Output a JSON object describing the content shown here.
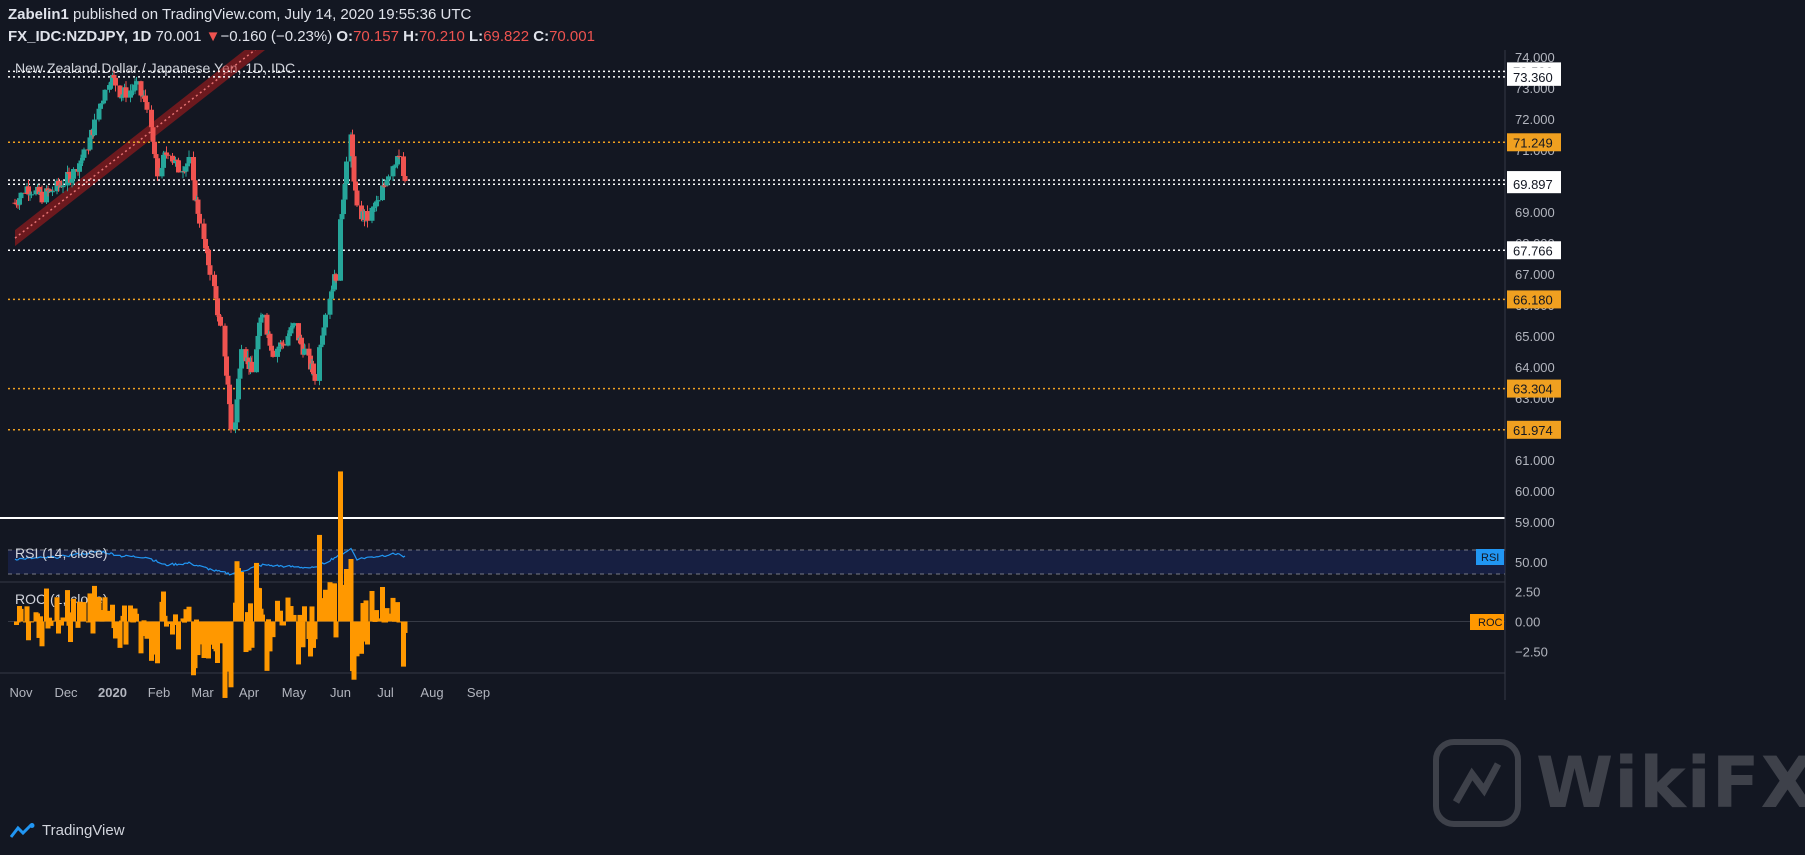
{
  "header": {
    "publisher": "Zabelin1",
    "published_text": "published on TradingView.com, July 14, 2020 19:55:36 UTC",
    "symbol": "FX_IDC:NZDJPY, 1D",
    "last": "70.001",
    "change": "−0.160 (−0.23%)",
    "o_label": "O:",
    "o_value": "70.157",
    "h_label": "H:",
    "h_value": "70.210",
    "l_label": "L:",
    "l_value": "69.822",
    "c_label": "C:",
    "c_value": "70.001"
  },
  "footer": {
    "brand": "TradingView"
  },
  "watermark": {
    "text": "WikiFX"
  },
  "colors": {
    "background": "#131722",
    "up": "#26a69a",
    "down": "#ef5350",
    "orange_level": "#f0a020",
    "rsi": "#2196f3",
    "roc": "#ff9800",
    "channel": "#b71c1c"
  },
  "chart_data": {
    "type": "candlestick",
    "title": "New Zealand Dollar / Japanese Yen, 1D, IDC",
    "y_range": [
      59.0,
      74.0
    ],
    "y_ticks": [
      "74.000",
      "73.000",
      "72.000",
      "71.000",
      "70.000",
      "69.000",
      "68.000",
      "67.000",
      "66.000",
      "65.000",
      "64.000",
      "63.000",
      "62.000",
      "61.000",
      "60.000",
      "59.000"
    ],
    "x_ticks": [
      "Nov",
      "Dec",
      "2020",
      "Feb",
      "Mar",
      "Apr",
      "May",
      "Jun",
      "Jul",
      "Aug",
      "Sep"
    ],
    "start_date": "2019-10-28",
    "x_tick_dates": [
      "2019-11-01",
      "2019-12-01",
      "2020-01-01",
      "2020-02-01",
      "2020-03-01",
      "2020-04-01",
      "2020-05-01",
      "2020-06-01",
      "2020-07-01",
      "2020-08-01",
      "2020-09-01"
    ],
    "levels": [
      {
        "value": 73.536,
        "label": "73.536",
        "style": "white"
      },
      {
        "value": 73.36,
        "label": "73.360",
        "style": "white"
      },
      {
        "value": 71.249,
        "label": "71.249",
        "style": "orange"
      },
      {
        "value": 70.03,
        "label": "70.030",
        "style": "white"
      },
      {
        "value": 69.897,
        "label": "69.897",
        "style": "white"
      },
      {
        "value": 67.766,
        "label": "67.766",
        "style": "white"
      },
      {
        "value": 66.18,
        "label": "66.180",
        "style": "orange"
      },
      {
        "value": 63.304,
        "label": "63.304",
        "style": "orange"
      },
      {
        "value": 61.974,
        "label": "61.974",
        "style": "orange"
      }
    ],
    "channel": {
      "start": {
        "date": "2019-10-28",
        "value": 67.9
      },
      "end": {
        "date": "2020-02-01",
        "value": 74.3
      }
    },
    "anchors": [
      {
        "date": "2019-10-28",
        "value": 69.3
      },
      {
        "date": "2019-11-05",
        "value": 69.8
      },
      {
        "date": "2019-11-15",
        "value": 69.5
      },
      {
        "date": "2019-11-25",
        "value": 69.8
      },
      {
        "date": "2019-12-05",
        "value": 70.2
      },
      {
        "date": "2019-12-15",
        "value": 71.0
      },
      {
        "date": "2019-12-24",
        "value": 72.5
      },
      {
        "date": "2019-12-31",
        "value": 73.4
      },
      {
        "date": "2020-01-07",
        "value": 72.8
      },
      {
        "date": "2020-01-17",
        "value": 73.0
      },
      {
        "date": "2020-01-24",
        "value": 72.5
      },
      {
        "date": "2020-01-31",
        "value": 70.2
      },
      {
        "date": "2020-02-07",
        "value": 71.0
      },
      {
        "date": "2020-02-14",
        "value": 70.4
      },
      {
        "date": "2020-02-21",
        "value": 70.6
      },
      {
        "date": "2020-03-02",
        "value": 68.0
      },
      {
        "date": "2020-03-09",
        "value": 66.5
      },
      {
        "date": "2020-03-12",
        "value": 65.5
      },
      {
        "date": "2020-03-18",
        "value": 63.5
      },
      {
        "date": "2020-03-20",
        "value": 62.0
      },
      {
        "date": "2020-03-23",
        "value": 62.3
      },
      {
        "date": "2020-03-27",
        "value": 64.8
      },
      {
        "date": "2020-04-03",
        "value": 63.8
      },
      {
        "date": "2020-04-10",
        "value": 65.8
      },
      {
        "date": "2020-04-17",
        "value": 64.5
      },
      {
        "date": "2020-04-24",
        "value": 64.8
      },
      {
        "date": "2020-05-01",
        "value": 65.3
      },
      {
        "date": "2020-05-08",
        "value": 64.5
      },
      {
        "date": "2020-05-15",
        "value": 63.7
      },
      {
        "date": "2020-05-22",
        "value": 65.8
      },
      {
        "date": "2020-05-29",
        "value": 67.0
      },
      {
        "date": "2020-06-05",
        "value": 70.6
      },
      {
        "date": "2020-06-08",
        "value": 71.3
      },
      {
        "date": "2020-06-12",
        "value": 69.0
      },
      {
        "date": "2020-06-19",
        "value": 68.8
      },
      {
        "date": "2020-06-26",
        "value": 69.3
      },
      {
        "date": "2020-07-03",
        "value": 70.3
      },
      {
        "date": "2020-07-09",
        "value": 70.8
      },
      {
        "date": "2020-07-14",
        "value": 70.0
      }
    ],
    "last_close": 70.001,
    "rsi": {
      "label": "RSI (14, close)",
      "tag": "RSI",
      "y_range": [
        20,
        90
      ],
      "ticks": [
        "50.00"
      ],
      "bands": [
        70,
        30
      ],
      "anchors": [
        {
          "date": "2019-10-28",
          "value": 55
        },
        {
          "date": "2019-11-25",
          "value": 58
        },
        {
          "date": "2019-12-24",
          "value": 68
        },
        {
          "date": "2020-01-07",
          "value": 60
        },
        {
          "date": "2020-01-24",
          "value": 58
        },
        {
          "date": "2020-02-05",
          "value": 45
        },
        {
          "date": "2020-02-21",
          "value": 48
        },
        {
          "date": "2020-03-10",
          "value": 35
        },
        {
          "date": "2020-03-20",
          "value": 30
        },
        {
          "date": "2020-04-10",
          "value": 45
        },
        {
          "date": "2020-05-15",
          "value": 40
        },
        {
          "date": "2020-06-08",
          "value": 72
        },
        {
          "date": "2020-06-12",
          "value": 55
        },
        {
          "date": "2020-07-09",
          "value": 64
        },
        {
          "date": "2020-07-14",
          "value": 58
        }
      ]
    },
    "roc": {
      "label": "ROC (1, close)",
      "tag": "ROC",
      "y_range": [
        -4.2,
        3.2
      ],
      "ticks": [
        "2.50",
        "0.00",
        "−2.50"
      ]
    }
  }
}
